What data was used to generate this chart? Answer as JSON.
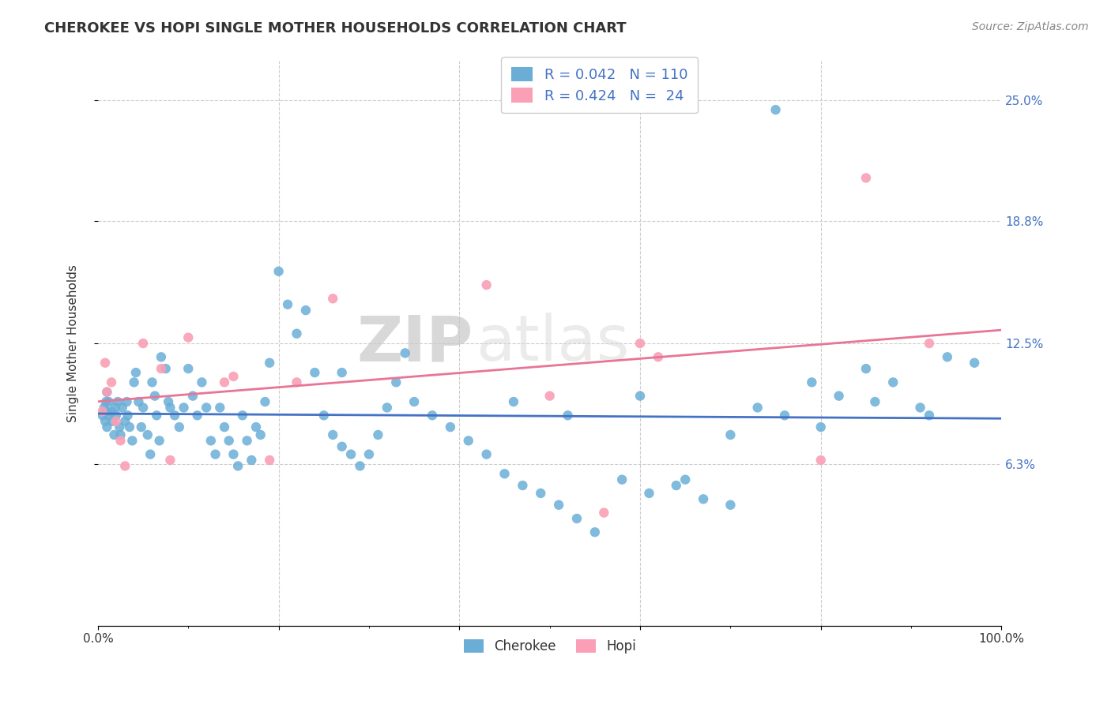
{
  "title": "CHEROKEE VS HOPI SINGLE MOTHER HOUSEHOLDS CORRELATION CHART",
  "source": "Source: ZipAtlas.com",
  "ylabel": "Single Mother Households",
  "ytick_labels": [
    "6.3%",
    "12.5%",
    "18.8%",
    "25.0%"
  ],
  "ytick_values": [
    0.063,
    0.125,
    0.188,
    0.25
  ],
  "cherokee_color": "#6aaed6",
  "hopi_color": "#fa9fb5",
  "cherokee_line_color": "#4472c4",
  "hopi_line_color": "#e87596",
  "watermark_zip": "ZIP",
  "watermark_atlas": "atlas",
  "xlim": [
    0.0,
    1.0
  ],
  "ylim": [
    -0.02,
    0.27
  ],
  "cherokee_x": [
    0.005,
    0.007,
    0.008,
    0.009,
    0.01,
    0.01,
    0.01,
    0.011,
    0.012,
    0.015,
    0.016,
    0.018,
    0.019,
    0.02,
    0.022,
    0.024,
    0.025,
    0.027,
    0.03,
    0.032,
    0.033,
    0.035,
    0.038,
    0.04,
    0.042,
    0.045,
    0.048,
    0.05,
    0.055,
    0.058,
    0.06,
    0.063,
    0.065,
    0.068,
    0.07,
    0.075,
    0.078,
    0.08,
    0.085,
    0.09,
    0.095,
    0.1,
    0.105,
    0.11,
    0.115,
    0.12,
    0.125,
    0.13,
    0.135,
    0.14,
    0.145,
    0.15,
    0.155,
    0.16,
    0.165,
    0.17,
    0.175,
    0.18,
    0.185,
    0.19,
    0.2,
    0.21,
    0.22,
    0.23,
    0.24,
    0.25,
    0.26,
    0.27,
    0.28,
    0.29,
    0.3,
    0.31,
    0.32,
    0.33,
    0.34,
    0.35,
    0.37,
    0.39,
    0.41,
    0.43,
    0.45,
    0.47,
    0.49,
    0.51,
    0.53,
    0.55,
    0.58,
    0.61,
    0.64,
    0.67,
    0.7,
    0.73,
    0.76,
    0.79,
    0.82,
    0.85,
    0.88,
    0.91,
    0.94,
    0.97,
    0.27,
    0.46,
    0.52,
    0.6,
    0.65,
    0.7,
    0.75,
    0.8,
    0.86,
    0.92
  ],
  "cherokee_y": [
    0.088,
    0.092,
    0.085,
    0.095,
    0.1,
    0.09,
    0.082,
    0.088,
    0.095,
    0.09,
    0.085,
    0.078,
    0.092,
    0.088,
    0.095,
    0.082,
    0.078,
    0.092,
    0.085,
    0.095,
    0.088,
    0.082,
    0.075,
    0.105,
    0.11,
    0.095,
    0.082,
    0.092,
    0.078,
    0.068,
    0.105,
    0.098,
    0.088,
    0.075,
    0.118,
    0.112,
    0.095,
    0.092,
    0.088,
    0.082,
    0.092,
    0.112,
    0.098,
    0.088,
    0.105,
    0.092,
    0.075,
    0.068,
    0.092,
    0.082,
    0.075,
    0.068,
    0.062,
    0.088,
    0.075,
    0.065,
    0.082,
    0.078,
    0.095,
    0.115,
    0.162,
    0.145,
    0.13,
    0.142,
    0.11,
    0.088,
    0.078,
    0.072,
    0.068,
    0.062,
    0.068,
    0.078,
    0.092,
    0.105,
    0.12,
    0.095,
    0.088,
    0.082,
    0.075,
    0.068,
    0.058,
    0.052,
    0.048,
    0.042,
    0.035,
    0.028,
    0.055,
    0.048,
    0.052,
    0.045,
    0.042,
    0.092,
    0.088,
    0.105,
    0.098,
    0.112,
    0.105,
    0.092,
    0.118,
    0.115,
    0.11,
    0.095,
    0.088,
    0.098,
    0.055,
    0.078,
    0.245,
    0.082,
    0.095,
    0.088
  ],
  "hopi_x": [
    0.005,
    0.008,
    0.01,
    0.015,
    0.02,
    0.025,
    0.03,
    0.05,
    0.07,
    0.08,
    0.1,
    0.14,
    0.15,
    0.19,
    0.22,
    0.26,
    0.43,
    0.5,
    0.56,
    0.6,
    0.62,
    0.8,
    0.85,
    0.92
  ],
  "hopi_y": [
    0.09,
    0.115,
    0.1,
    0.105,
    0.085,
    0.075,
    0.062,
    0.125,
    0.112,
    0.065,
    0.128,
    0.105,
    0.108,
    0.065,
    0.105,
    0.148,
    0.155,
    0.098,
    0.038,
    0.125,
    0.118,
    0.065,
    0.21,
    0.125
  ],
  "cherokee_R": 0.042,
  "hopi_R": 0.424,
  "cherokee_N": 110,
  "hopi_N": 24
}
